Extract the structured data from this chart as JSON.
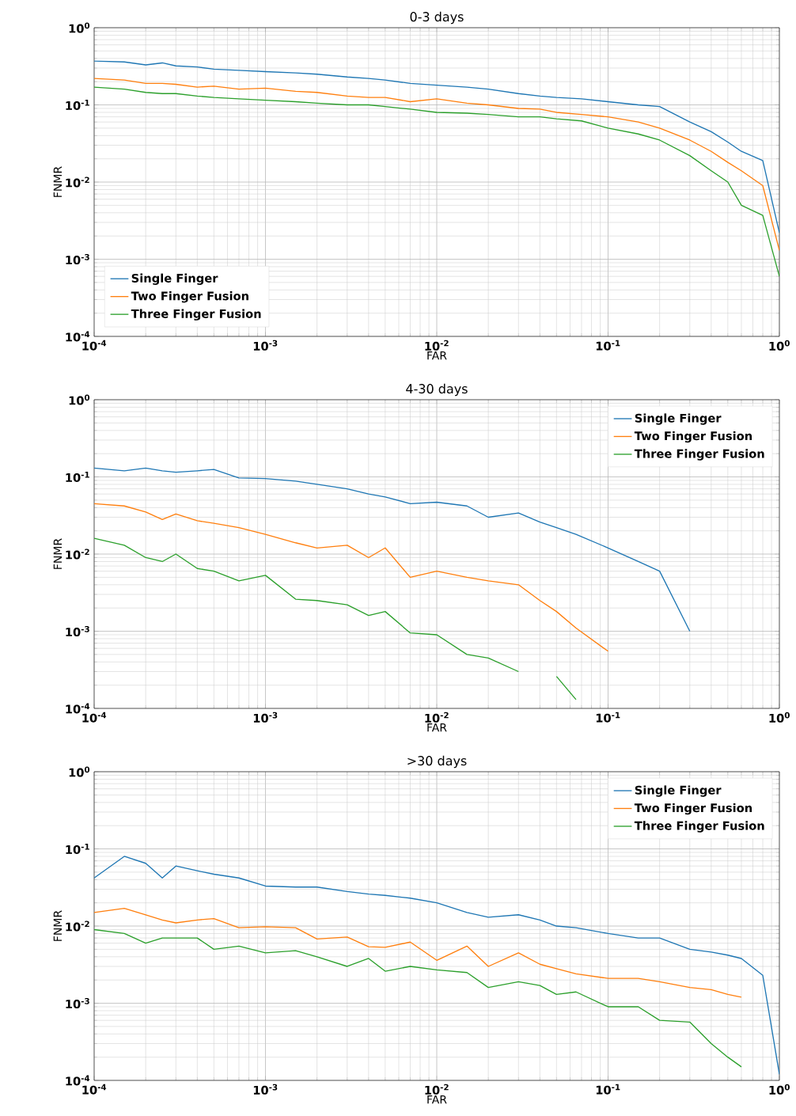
{
  "chart_data": [
    {
      "type": "line",
      "title": "0-3 days",
      "xlabel": "FAR",
      "ylabel": "FNMR",
      "log": "xy",
      "grid": true,
      "legend": "bottom left",
      "xlim": [
        0.0001,
        1
      ],
      "ylim": [
        0.0001,
        1
      ],
      "xticks": [
        {
          "value": 0.0001,
          "label": "10$^{-4}$"
        },
        {
          "value": 0.001,
          "label": "10$^{-3}$"
        },
        {
          "value": 0.01,
          "label": "10$^{-2}$"
        },
        {
          "value": 0.1,
          "label": "10$^{-1}$"
        },
        {
          "value": 1,
          "label": "10$^{0}$"
        }
      ],
      "yticks": [
        {
          "value": 0.0001,
          "label": "10$^{-4}$"
        },
        {
          "value": 0.001,
          "label": "10$^{-3}$"
        },
        {
          "value": 0.01,
          "label": "10$^{-2}$"
        },
        {
          "value": 0.1,
          "label": "10$^{-1}$"
        },
        {
          "value": 1,
          "label": "10$^{0}$"
        }
      ],
      "x": [
        0.0001,
        0.00015,
        0.0002,
        0.00025,
        0.0003,
        0.0004,
        0.0005,
        0.0007,
        0.001,
        0.0015,
        0.002,
        0.003,
        0.004,
        0.005,
        0.007,
        0.01,
        0.015,
        0.02,
        0.03,
        0.04,
        0.05,
        0.07,
        0.1,
        0.15,
        0.2,
        0.3,
        0.4,
        0.5,
        0.6,
        0.8,
        1
      ],
      "series": [
        {
          "name": "Single Finger",
          "color": "#1f77b4",
          "values": [
            0.37,
            0.36,
            0.33,
            0.35,
            0.32,
            0.31,
            0.29,
            0.28,
            0.27,
            0.26,
            0.25,
            0.23,
            0.22,
            0.21,
            0.19,
            0.18,
            0.17,
            0.16,
            0.14,
            0.13,
            0.125,
            0.12,
            0.11,
            0.1,
            0.095,
            0.06,
            0.045,
            0.033,
            0.025,
            0.019,
            0.0022
          ]
        },
        {
          "name": "Two Finger Fusion",
          "color": "#ff7f0e",
          "values": [
            0.22,
            0.21,
            0.19,
            0.19,
            0.185,
            0.17,
            0.175,
            0.16,
            0.165,
            0.15,
            0.145,
            0.13,
            0.125,
            0.125,
            0.11,
            0.12,
            0.105,
            0.1,
            0.09,
            0.088,
            0.08,
            0.075,
            0.07,
            0.06,
            0.05,
            0.035,
            0.025,
            0.018,
            0.014,
            0.009,
            0.0013
          ]
        },
        {
          "name": "Three Finger Fusion",
          "color": "#2ca02c",
          "values": [
            0.17,
            0.16,
            0.145,
            0.14,
            0.14,
            0.13,
            0.125,
            0.12,
            0.115,
            0.11,
            0.105,
            0.1,
            0.1,
            0.095,
            0.088,
            0.08,
            0.078,
            0.075,
            0.07,
            0.07,
            0.066,
            0.062,
            0.05,
            0.042,
            0.035,
            0.022,
            0.014,
            0.01,
            0.005,
            0.0037,
            0.0006
          ]
        }
      ]
    },
    {
      "type": "line",
      "title": "4-30 days",
      "xlabel": "FAR",
      "ylabel": "FNMR",
      "log": "xy",
      "grid": true,
      "legend": "top right",
      "xlim": [
        0.0001,
        1
      ],
      "ylim": [
        0.0001,
        1
      ],
      "xticks": [
        {
          "value": 0.0001,
          "label": "10$^{-4}$"
        },
        {
          "value": 0.001,
          "label": "10$^{-3}$"
        },
        {
          "value": 0.01,
          "label": "10$^{-2}$"
        },
        {
          "value": 0.1,
          "label": "10$^{-1}$"
        },
        {
          "value": 1,
          "label": "10$^{0}$"
        }
      ],
      "yticks": [
        {
          "value": 0.0001,
          "label": "10$^{-4}$"
        },
        {
          "value": 0.001,
          "label": "10$^{-3}$"
        },
        {
          "value": 0.01,
          "label": "10$^{-2}$"
        },
        {
          "value": 0.1,
          "label": "10$^{-1}$"
        },
        {
          "value": 1,
          "label": "10$^{0}$"
        }
      ],
      "x": [
        0.0001,
        0.00015,
        0.0002,
        0.00025,
        0.0003,
        0.0004,
        0.0005,
        0.0007,
        0.001,
        0.0015,
        0.002,
        0.003,
        0.004,
        0.005,
        0.007,
        0.01,
        0.015,
        0.02,
        0.03,
        0.04,
        0.05,
        0.065,
        0.1,
        0.15,
        0.2,
        0.3
      ],
      "series": [
        {
          "name": "Single Finger",
          "color": "#1f77b4",
          "values": [
            0.13,
            0.12,
            0.13,
            0.12,
            0.115,
            0.12,
            0.125,
            0.097,
            0.095,
            0.088,
            0.08,
            0.07,
            0.06,
            0.055,
            0.045,
            0.047,
            0.042,
            0.03,
            0.034,
            0.026,
            0.022,
            0.018,
            0.012,
            0.008,
            0.006,
            0.001
          ]
        },
        {
          "name": "Two Finger Fusion",
          "color": "#ff7f0e",
          "values": [
            0.045,
            0.042,
            0.035,
            0.028,
            0.033,
            0.027,
            0.025,
            0.022,
            0.018,
            0.014,
            0.012,
            0.013,
            0.009,
            0.012,
            0.005,
            0.006,
            0.005,
            0.0045,
            0.004,
            0.0025,
            0.0018,
            0.0011,
            0.00055,
            null,
            null,
            null
          ]
        },
        {
          "name": "Three Finger Fusion",
          "color": "#2ca02c",
          "values": [
            0.016,
            0.013,
            0.009,
            0.008,
            0.01,
            0.0065,
            0.006,
            0.0045,
            0.0053,
            0.0026,
            0.0025,
            0.0022,
            0.0016,
            0.0018,
            0.00095,
            0.0009,
            0.0005,
            0.00045,
            0.0003,
            null,
            0.00026,
            0.00013,
            null,
            null,
            null,
            null
          ]
        }
      ]
    },
    {
      "type": "line",
      "title": ">30 days",
      "xlabel": "FAR",
      "ylabel": "FNMR",
      "log": "xy",
      "grid": true,
      "legend": "top right",
      "xlim": [
        0.0001,
        1
      ],
      "ylim": [
        0.0001,
        1
      ],
      "xticks": [
        {
          "value": 0.0001,
          "label": "10$^{-4}$"
        },
        {
          "value": 0.001,
          "label": "10$^{-3}$"
        },
        {
          "value": 0.01,
          "label": "10$^{-2}$"
        },
        {
          "value": 0.1,
          "label": "10$^{-1}$"
        },
        {
          "value": 1,
          "label": "10$^{0}$"
        }
      ],
      "yticks": [
        {
          "value": 0.0001,
          "label": "10$^{-4}$"
        },
        {
          "value": 0.001,
          "label": "10$^{-3}$"
        },
        {
          "value": 0.01,
          "label": "10$^{-2}$"
        },
        {
          "value": 0.1,
          "label": "10$^{-1}$"
        },
        {
          "value": 1,
          "label": "10$^{0}$"
        }
      ],
      "x": [
        0.0001,
        0.00015,
        0.0002,
        0.00025,
        0.0003,
        0.0004,
        0.0005,
        0.0007,
        0.001,
        0.0015,
        0.002,
        0.003,
        0.004,
        0.005,
        0.007,
        0.01,
        0.015,
        0.02,
        0.03,
        0.04,
        0.05,
        0.065,
        0.1,
        0.15,
        0.2,
        0.3,
        0.4,
        0.5,
        0.6,
        0.8,
        1
      ],
      "series": [
        {
          "name": "Single Finger",
          "color": "#1f77b4",
          "values": [
            0.042,
            0.08,
            0.065,
            0.042,
            0.06,
            0.052,
            0.047,
            0.042,
            0.033,
            0.032,
            0.032,
            0.028,
            0.026,
            0.025,
            0.023,
            0.02,
            0.015,
            0.013,
            0.014,
            0.012,
            0.01,
            0.0095,
            0.008,
            0.007,
            0.007,
            0.005,
            0.0046,
            0.0042,
            0.0038,
            0.0023,
            0.00012
          ]
        },
        {
          "name": "Two Finger Fusion",
          "color": "#ff7f0e",
          "values": [
            0.015,
            0.017,
            0.014,
            0.012,
            0.011,
            0.012,
            0.0125,
            0.0095,
            0.0098,
            0.0095,
            0.0068,
            0.0072,
            0.0054,
            0.0053,
            0.0062,
            0.0036,
            0.0055,
            0.003,
            0.0045,
            0.0032,
            0.0028,
            0.0024,
            0.0021,
            0.0021,
            0.0019,
            0.0016,
            0.0015,
            0.0013,
            0.0012,
            null,
            null
          ]
        },
        {
          "name": "Three Finger Fusion",
          "color": "#2ca02c",
          "values": [
            0.009,
            0.008,
            0.006,
            0.007,
            0.007,
            0.007,
            0.005,
            0.0055,
            0.0045,
            0.0048,
            0.004,
            0.003,
            0.0038,
            0.0026,
            0.003,
            0.0027,
            0.0025,
            0.0016,
            0.0019,
            0.0017,
            0.0013,
            0.0014,
            0.0009,
            0.0009,
            0.0006,
            0.00057,
            0.0003,
            0.0002,
            0.00015,
            null,
            null
          ]
        }
      ]
    }
  ]
}
